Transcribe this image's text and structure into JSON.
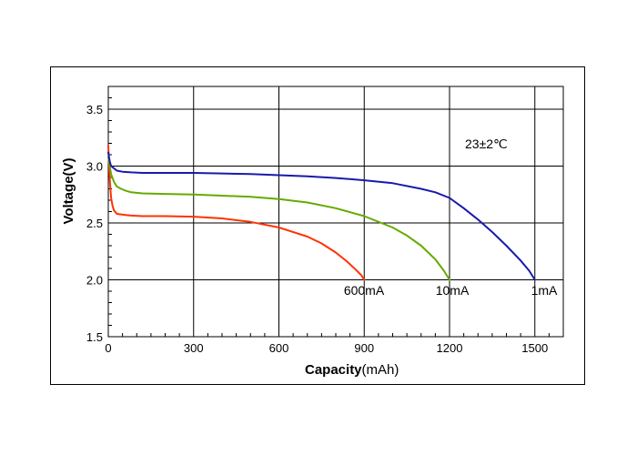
{
  "chart_data": {
    "type": "line",
    "title": "",
    "xlabel": "Capacity",
    "xlabel_unit": "(mAh)",
    "ylabel": "Voltage(V)",
    "xlim": [
      0,
      1600
    ],
    "ylim": [
      1.5,
      3.7
    ],
    "x_ticks": [
      0,
      300,
      600,
      900,
      1200,
      1500
    ],
    "y_ticks": [
      1.5,
      2.0,
      2.5,
      3.0,
      3.5
    ],
    "x_tick_labels": [
      "0",
      "300",
      "600",
      "900",
      "1200",
      "1500"
    ],
    "y_tick_labels": [
      "1.5",
      "2.0",
      "2.5",
      "3.0",
      "3.5"
    ],
    "grid": true,
    "annotation": "23±2℃",
    "series": [
      {
        "name": "600mA",
        "color": "#ff3300",
        "x": [
          0,
          3,
          6,
          10,
          15,
          20,
          30,
          45,
          60,
          80,
          120,
          200,
          300,
          400,
          500,
          600,
          700,
          750,
          800,
          840,
          870,
          890,
          900
        ],
        "y": [
          3.18,
          3.0,
          2.85,
          2.72,
          2.65,
          2.61,
          2.58,
          2.575,
          2.57,
          2.565,
          2.56,
          2.56,
          2.555,
          2.54,
          2.51,
          2.46,
          2.38,
          2.32,
          2.24,
          2.16,
          2.09,
          2.04,
          2.0
        ]
      },
      {
        "name": "10mA",
        "color": "#66aa00",
        "x": [
          0,
          5,
          10,
          20,
          30,
          45,
          60,
          80,
          120,
          200,
          300,
          400,
          500,
          600,
          700,
          800,
          900,
          1000,
          1050,
          1100,
          1150,
          1180,
          1200
        ],
        "y": [
          3.08,
          3.0,
          2.93,
          2.86,
          2.82,
          2.8,
          2.785,
          2.77,
          2.76,
          2.755,
          2.75,
          2.74,
          2.73,
          2.71,
          2.68,
          2.63,
          2.56,
          2.46,
          2.39,
          2.3,
          2.18,
          2.08,
          2.0
        ]
      },
      {
        "name": "1mA",
        "color": "#1a1aaa",
        "x": [
          0,
          5,
          10,
          20,
          30,
          50,
          80,
          120,
          200,
          300,
          400,
          500,
          600,
          700,
          800,
          900,
          1000,
          1100,
          1150,
          1200,
          1250,
          1300,
          1350,
          1400,
          1450,
          1480,
          1500
        ],
        "y": [
          3.12,
          3.04,
          3.0,
          2.98,
          2.96,
          2.95,
          2.945,
          2.94,
          2.94,
          2.94,
          2.935,
          2.93,
          2.92,
          2.91,
          2.895,
          2.875,
          2.85,
          2.8,
          2.77,
          2.72,
          2.63,
          2.53,
          2.42,
          2.3,
          2.17,
          2.08,
          2.0
        ]
      }
    ]
  }
}
